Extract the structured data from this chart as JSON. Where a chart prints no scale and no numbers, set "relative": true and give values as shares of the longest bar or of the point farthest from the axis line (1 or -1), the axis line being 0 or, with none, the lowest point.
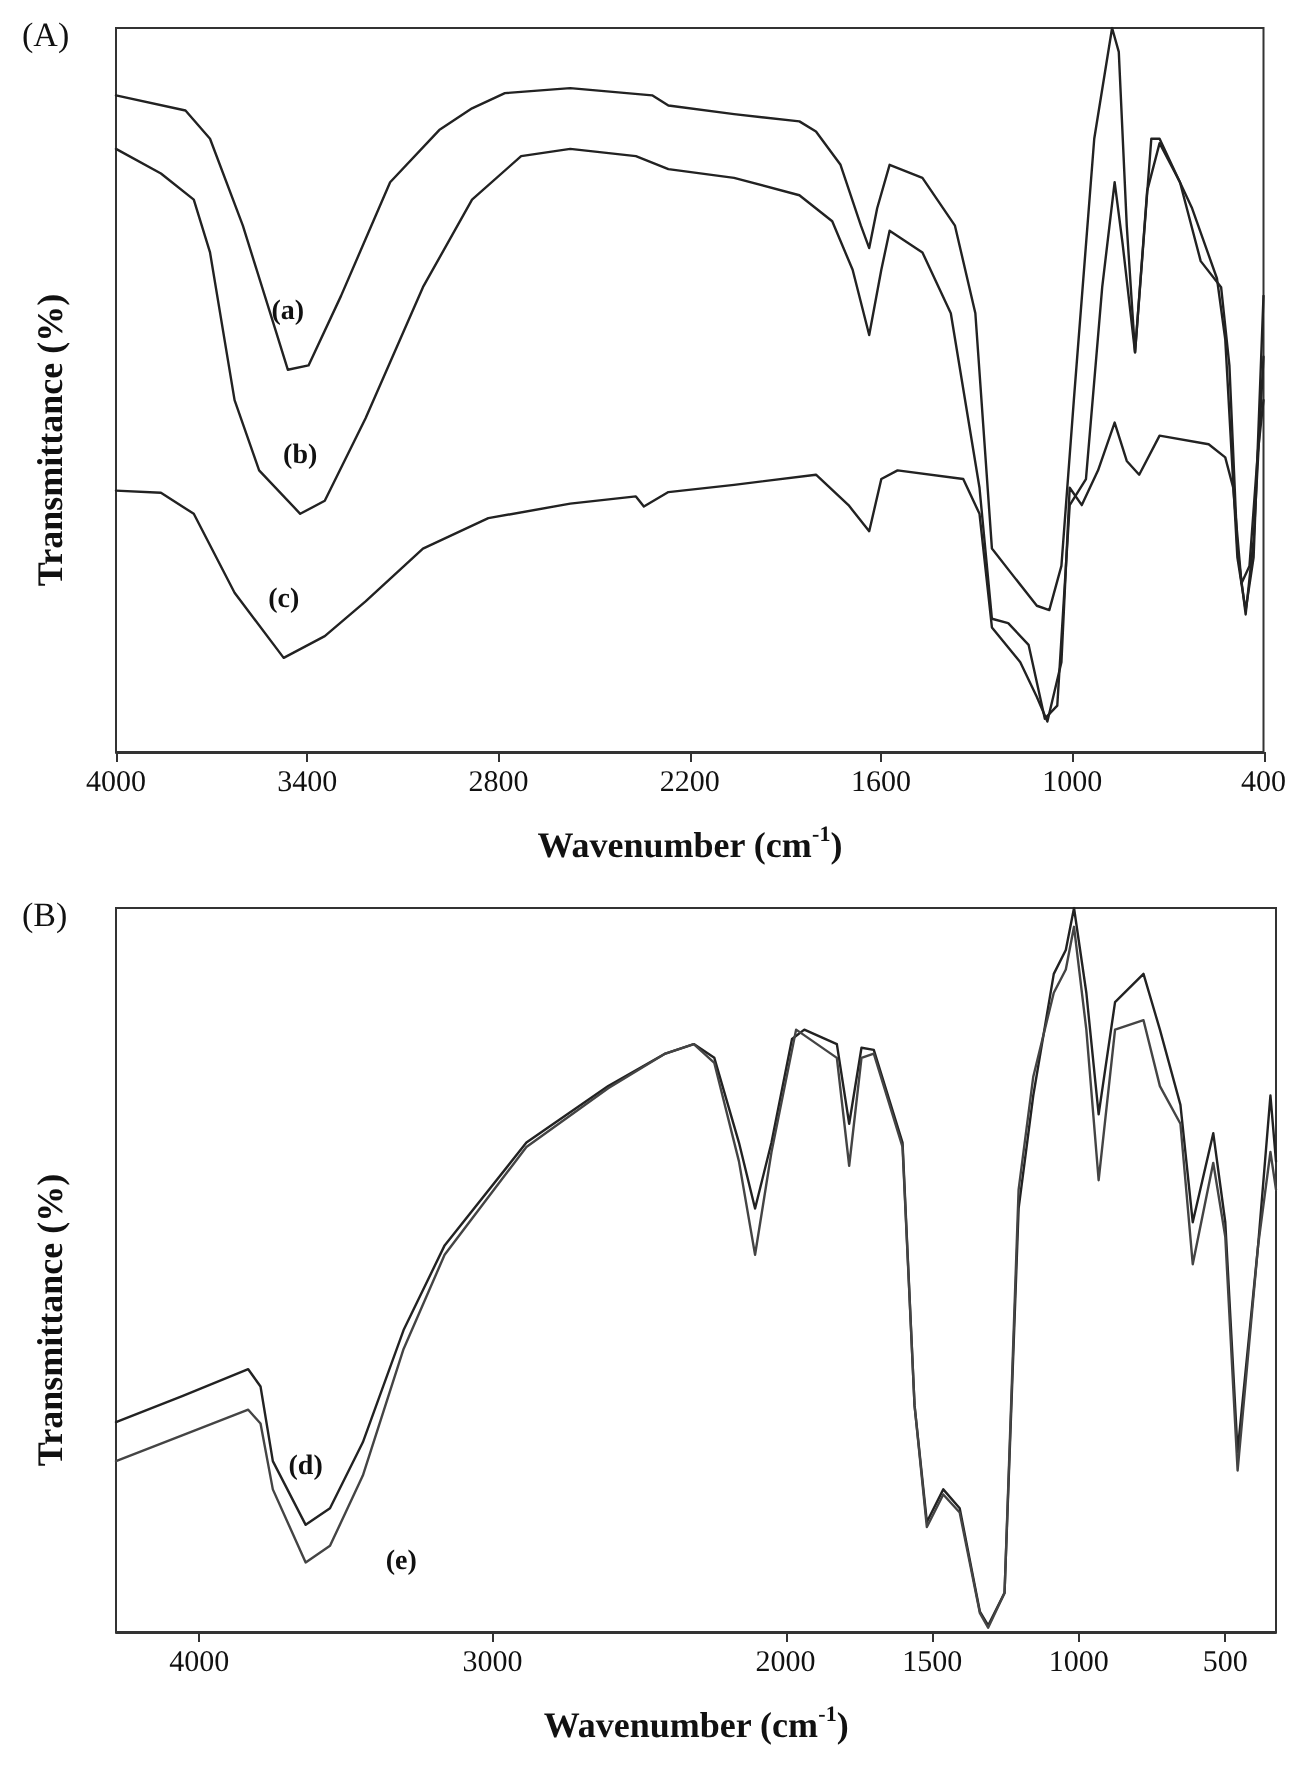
{
  "chart_data": [
    {
      "type": "line",
      "title": "(A)",
      "xlabel": "Wavenumber (cm$^{-1}$)",
      "ylabel": "Transmittance (%)",
      "relative": true,
      "xlim": [
        4000,
        400
      ],
      "xticks": [
        4000,
        3400,
        2800,
        2200,
        1600,
        1000,
        400
      ],
      "grid": false,
      "marker": "none",
      "line_style": "solid",
      "series": [
        {
          "name": "(a)",
          "color": "#222222",
          "x": [
            4000,
            3782,
            3705,
            3602,
            3499,
            3461,
            3396,
            3294,
            3140,
            2986,
            2883,
            2780,
            2575,
            2318,
            2267,
            2061,
            1856,
            1804,
            1727,
            1663,
            1637,
            1612,
            1573,
            1470,
            1368,
            1304,
            1252,
            1188,
            1111,
            1072,
            1034,
            995,
            931,
            875,
            854,
            829,
            803,
            777,
            752,
            726,
            675,
            624,
            546,
            520,
            482,
            456,
            431,
            400
          ],
          "values": [
            0.907,
            0.886,
            0.847,
            0.727,
            0.582,
            0.528,
            0.534,
            0.63,
            0.787,
            0.859,
            0.889,
            0.91,
            0.917,
            0.907,
            0.893,
            0.881,
            0.871,
            0.857,
            0.811,
            0.727,
            0.696,
            0.751,
            0.811,
            0.793,
            0.727,
            0.606,
            0.281,
            0.245,
            0.202,
            0.196,
            0.257,
            0.486,
            0.847,
            1,
            0.967,
            0.727,
            0.552,
            0.702,
            0.847,
            0.847,
            0.799,
            0.751,
            0.654,
            0.57,
            0.269,
            0.196,
            0.269,
            0.63
          ]
        },
        {
          "name": "(b)",
          "color": "#222222",
          "x": [
            4000,
            3859,
            3756,
            3705,
            3628,
            3551,
            3422,
            3345,
            3217,
            3037,
            2883,
            2729,
            2575,
            2369,
            2267,
            2061,
            1856,
            1753,
            1689,
            1637,
            1599,
            1573,
            1470,
            1381,
            1291,
            1252,
            1201,
            1137,
            1086,
            1047,
            1008,
            957,
            906,
            867,
            842,
            803,
            765,
            726,
            662,
            597,
            533,
            507,
            482,
            456,
            431,
            400
          ],
          "values": [
            0.833,
            0.799,
            0.763,
            0.69,
            0.486,
            0.389,
            0.329,
            0.347,
            0.461,
            0.642,
            0.763,
            0.823,
            0.833,
            0.823,
            0.805,
            0.793,
            0.769,
            0.733,
            0.666,
            0.576,
            0.666,
            0.72,
            0.69,
            0.606,
            0.365,
            0.184,
            0.178,
            0.148,
            0.046,
            0.064,
            0.341,
            0.377,
            0.642,
            0.787,
            0.702,
            0.552,
            0.775,
            0.841,
            0.787,
            0.678,
            0.642,
            0.534,
            0.281,
            0.19,
            0.293,
            0.546
          ]
        },
        {
          "name": "(c)",
          "color": "#222222",
          "x": [
            4000,
            3859,
            3756,
            3628,
            3474,
            3345,
            3217,
            3037,
            2832,
            2575,
            2369,
            2344,
            2267,
            2061,
            1804,
            1702,
            1637,
            1599,
            1548,
            1342,
            1291,
            1252,
            1163,
            1111,
            1078,
            1034,
            1008,
            970,
            919,
            867,
            829,
            790,
            726,
            572,
            520,
            495,
            469,
            444,
            418,
            400
          ],
          "values": [
            0.361,
            0.358,
            0.329,
            0.22,
            0.13,
            0.16,
            0.208,
            0.281,
            0.323,
            0.343,
            0.353,
            0.339,
            0.359,
            0.369,
            0.383,
            0.341,
            0.305,
            0.377,
            0.389,
            0.377,
            0.329,
            0.172,
            0.124,
            0.076,
            0.042,
            0.124,
            0.365,
            0.341,
            0.389,
            0.455,
            0.402,
            0.383,
            0.437,
            0.425,
            0.407,
            0.365,
            0.233,
            0.257,
            0.413,
            0.486
          ]
        }
      ]
    },
    {
      "type": "line",
      "title": "(B)",
      "xlabel": "Wavenumber (cm$^{-1}$)",
      "ylabel": "Transmittance (%)",
      "relative": true,
      "xlim": [
        4284,
        327
      ],
      "xticks": [
        4000,
        3000,
        2000,
        1500,
        1000,
        500
      ],
      "grid": false,
      "marker": "none",
      "line_style": "solid",
      "series": [
        {
          "name": "(d)",
          "color": "#222222",
          "x": [
            4284,
            4056,
            3833,
            3791,
            3749,
            3637,
            3554,
            3442,
            3303,
            3163,
            2884,
            2605,
            2410,
            2313,
            2243,
            2159,
            2104,
            2048,
            1978,
            1936,
            1825,
            1783,
            1741,
            1699,
            1601,
            1560,
            1518,
            1462,
            1406,
            1337,
            1309,
            1253,
            1205,
            1155,
            1085,
            1044,
            1016,
            974,
            932,
            876,
            779,
            723,
            653,
            611,
            541,
            500,
            458,
            388,
            346,
            327
          ],
          "values": [
            0.29,
            0.326,
            0.363,
            0.339,
            0.236,
            0.148,
            0.171,
            0.262,
            0.417,
            0.534,
            0.676,
            0.754,
            0.799,
            0.812,
            0.793,
            0.676,
            0.585,
            0.676,
            0.819,
            0.832,
            0.812,
            0.702,
            0.807,
            0.804,
            0.676,
            0.313,
            0.152,
            0.197,
            0.171,
            0.028,
            0.009,
            0.054,
            0.585,
            0.741,
            0.909,
            0.942,
            1,
            0.883,
            0.715,
            0.87,
            0.909,
            0.832,
            0.728,
            0.566,
            0.689,
            0.566,
            0.249,
            0.534,
            0.741,
            0.65
          ]
        },
        {
          "name": "(e)",
          "color": "#444444",
          "x": [
            4284,
            4056,
            3833,
            3791,
            3749,
            3637,
            3554,
            3442,
            3303,
            3163,
            2884,
            2605,
            2410,
            2313,
            2243,
            2159,
            2104,
            2048,
            1964,
            1825,
            1783,
            1741,
            1699,
            1601,
            1560,
            1518,
            1462,
            1406,
            1337,
            1309,
            1253,
            1205,
            1155,
            1085,
            1044,
            1016,
            974,
            932,
            876,
            779,
            723,
            653,
            611,
            541,
            500,
            458,
            388,
            346,
            327
          ],
          "values": [
            0.236,
            0.272,
            0.307,
            0.288,
            0.197,
            0.096,
            0.119,
            0.216,
            0.391,
            0.521,
            0.67,
            0.751,
            0.799,
            0.812,
            0.786,
            0.65,
            0.521,
            0.663,
            0.832,
            0.793,
            0.644,
            0.793,
            0.799,
            0.67,
            0.313,
            0.145,
            0.19,
            0.165,
            0.026,
            0.006,
            0.054,
            0.611,
            0.767,
            0.883,
            0.915,
            0.974,
            0.832,
            0.624,
            0.832,
            0.845,
            0.754,
            0.702,
            0.508,
            0.648,
            0.546,
            0.223,
            0.534,
            0.663,
            0.611
          ]
        }
      ]
    }
  ]
}
